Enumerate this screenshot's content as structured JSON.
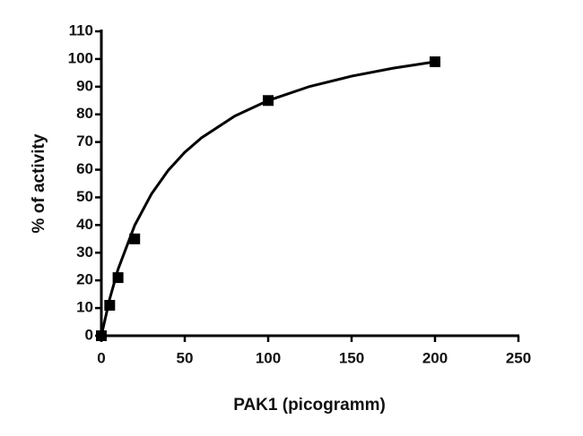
{
  "chart_data": {
    "type": "scatter",
    "x_label": "PAK1 (picogramm)",
    "y_label": "% of activity",
    "points": {
      "x": [
        0,
        5,
        10,
        20,
        100,
        200
      ],
      "values": [
        0,
        11,
        21,
        35,
        85,
        99
      ],
      "color": "#000000"
    },
    "fit_curve": {
      "x": [
        0,
        5,
        10,
        20,
        30,
        40,
        50,
        60,
        80,
        100,
        125,
        150,
        175,
        200
      ],
      "values": [
        0,
        13.3,
        24,
        39.9,
        51.2,
        59.7,
        66.3,
        71.5,
        79.4,
        85,
        90.1,
        93.8,
        96.7,
        99
      ],
      "color": "#000000"
    },
    "xlim": [
      0,
      250
    ],
    "xticks": [
      0,
      50,
      100,
      150,
      200,
      250
    ],
    "ylim": [
      0,
      110
    ],
    "yticks": [
      0,
      10,
      20,
      30,
      40,
      50,
      60,
      70,
      80,
      90,
      100,
      110
    ],
    "grid": false
  }
}
